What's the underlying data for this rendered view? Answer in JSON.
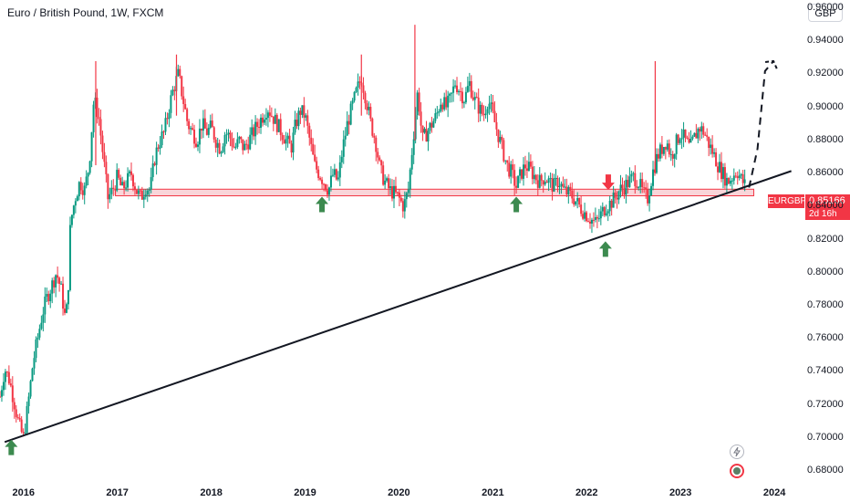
{
  "header": {
    "title": "Euro / British Pound, 1W, FXCM"
  },
  "currency_button": {
    "label": "GBP"
  },
  "price_tag": {
    "symbol": "EURGBP",
    "price": "0.85166",
    "countdown": "2d 16h"
  },
  "colors": {
    "up": "#089981",
    "down": "#f23645",
    "zone_fill": "#f7c7cc",
    "arrow_up": "#3c8a4f",
    "arrow_down": "#f23645"
  },
  "icons": [
    "lightning-icon",
    "record-icon"
  ],
  "chart_data": {
    "type": "candlestick",
    "title": "Euro / British Pound, 1W, FXCM",
    "y_ticks": [
      "0.96000",
      "0.94000",
      "0.92000",
      "0.90000",
      "0.88000",
      "0.86000",
      "0.84000",
      "0.82000",
      "0.80000",
      "0.78000",
      "0.76000",
      "0.74000",
      "0.72000",
      "0.70000",
      "0.68000"
    ],
    "x_ticks": [
      "2016",
      "2017",
      "2018",
      "2019",
      "2020",
      "2021",
      "2022",
      "2023",
      "2024"
    ],
    "ylim": [
      0.675,
      0.965
    ],
    "xlim": [
      2015.75,
      2024.3
    ],
    "close_path": [
      [
        2015.75,
        0.725
      ],
      [
        2015.8,
        0.742
      ],
      [
        2015.85,
        0.735
      ],
      [
        2015.9,
        0.722
      ],
      [
        2015.95,
        0.708
      ],
      [
        2016.0,
        0.7
      ],
      [
        2016.03,
        0.712
      ],
      [
        2016.07,
        0.73
      ],
      [
        2016.1,
        0.745
      ],
      [
        2016.15,
        0.76
      ],
      [
        2016.2,
        0.775
      ],
      [
        2016.25,
        0.785
      ],
      [
        2016.3,
        0.792
      ],
      [
        2016.35,
        0.8
      ],
      [
        2016.4,
        0.79
      ],
      [
        2016.45,
        0.77
      ],
      [
        2016.48,
        0.795
      ],
      [
        2016.5,
        0.83
      ],
      [
        2016.55,
        0.845
      ],
      [
        2016.6,
        0.855
      ],
      [
        2016.65,
        0.85
      ],
      [
        2016.7,
        0.865
      ],
      [
        2016.75,
        0.905
      ],
      [
        2016.8,
        0.895
      ],
      [
        2016.85,
        0.87
      ],
      [
        2016.9,
        0.845
      ],
      [
        2016.95,
        0.85
      ],
      [
        2017.0,
        0.858
      ],
      [
        2017.05,
        0.85
      ],
      [
        2017.1,
        0.855
      ],
      [
        2017.15,
        0.86
      ],
      [
        2017.2,
        0.85
      ],
      [
        2017.25,
        0.845
      ],
      [
        2017.3,
        0.852
      ],
      [
        2017.35,
        0.85
      ],
      [
        2017.4,
        0.87
      ],
      [
        2017.45,
        0.88
      ],
      [
        2017.5,
        0.885
      ],
      [
        2017.55,
        0.9
      ],
      [
        2017.6,
        0.912
      ],
      [
        2017.65,
        0.92
      ],
      [
        2017.7,
        0.905
      ],
      [
        2017.75,
        0.89
      ],
      [
        2017.8,
        0.885
      ],
      [
        2017.85,
        0.88
      ],
      [
        2017.9,
        0.89
      ],
      [
        2017.95,
        0.885
      ],
      [
        2018.0,
        0.888
      ],
      [
        2018.05,
        0.88
      ],
      [
        2018.1,
        0.875
      ],
      [
        2018.15,
        0.885
      ],
      [
        2018.2,
        0.882
      ],
      [
        2018.25,
        0.875
      ],
      [
        2018.3,
        0.88
      ],
      [
        2018.35,
        0.875
      ],
      [
        2018.4,
        0.88
      ],
      [
        2018.45,
        0.885
      ],
      [
        2018.5,
        0.89
      ],
      [
        2018.55,
        0.895
      ],
      [
        2018.6,
        0.9
      ],
      [
        2018.65,
        0.895
      ],
      [
        2018.7,
        0.89
      ],
      [
        2018.75,
        0.885
      ],
      [
        2018.8,
        0.88
      ],
      [
        2018.85,
        0.875
      ],
      [
        2018.9,
        0.89
      ],
      [
        2018.95,
        0.898
      ],
      [
        2019.0,
        0.895
      ],
      [
        2019.05,
        0.88
      ],
      [
        2019.1,
        0.865
      ],
      [
        2019.15,
        0.86
      ],
      [
        2019.2,
        0.855
      ],
      [
        2019.25,
        0.85
      ],
      [
        2019.3,
        0.86
      ],
      [
        2019.35,
        0.855
      ],
      [
        2019.4,
        0.875
      ],
      [
        2019.45,
        0.89
      ],
      [
        2019.5,
        0.9
      ],
      [
        2019.55,
        0.91
      ],
      [
        2019.6,
        0.918
      ],
      [
        2019.65,
        0.905
      ],
      [
        2019.7,
        0.89
      ],
      [
        2019.75,
        0.88
      ],
      [
        2019.8,
        0.862
      ],
      [
        2019.85,
        0.855
      ],
      [
        2019.9,
        0.85
      ],
      [
        2019.95,
        0.848
      ],
      [
        2020.0,
        0.845
      ],
      [
        2020.05,
        0.84
      ],
      [
        2020.1,
        0.85
      ],
      [
        2020.15,
        0.88
      ],
      [
        2020.2,
        0.91
      ],
      [
        2020.25,
        0.88
      ],
      [
        2020.3,
        0.885
      ],
      [
        2020.35,
        0.89
      ],
      [
        2020.4,
        0.895
      ],
      [
        2020.45,
        0.905
      ],
      [
        2020.5,
        0.9
      ],
      [
        2020.55,
        0.905
      ],
      [
        2020.6,
        0.915
      ],
      [
        2020.65,
        0.91
      ],
      [
        2020.7,
        0.905
      ],
      [
        2020.75,
        0.915
      ],
      [
        2020.8,
        0.905
      ],
      [
        2020.85,
        0.9
      ],
      [
        2020.9,
        0.895
      ],
      [
        2020.95,
        0.905
      ],
      [
        2021.0,
        0.895
      ],
      [
        2021.05,
        0.885
      ],
      [
        2021.1,
        0.875
      ],
      [
        2021.15,
        0.865
      ],
      [
        2021.2,
        0.86
      ],
      [
        2021.25,
        0.852
      ],
      [
        2021.3,
        0.86
      ],
      [
        2021.35,
        0.865
      ],
      [
        2021.4,
        0.862
      ],
      [
        2021.45,
        0.858
      ],
      [
        2021.5,
        0.855
      ],
      [
        2021.55,
        0.858
      ],
      [
        2021.6,
        0.855
      ],
      [
        2021.65,
        0.852
      ],
      [
        2021.7,
        0.856
      ],
      [
        2021.75,
        0.85
      ],
      [
        2021.8,
        0.848
      ],
      [
        2021.85,
        0.846
      ],
      [
        2021.9,
        0.842
      ],
      [
        2021.95,
        0.838
      ],
      [
        2022.0,
        0.835
      ],
      [
        2022.05,
        0.832
      ],
      [
        2022.1,
        0.83
      ],
      [
        2022.15,
        0.835
      ],
      [
        2022.2,
        0.84
      ],
      [
        2022.25,
        0.842
      ],
      [
        2022.3,
        0.845
      ],
      [
        2022.35,
        0.85
      ],
      [
        2022.4,
        0.852
      ],
      [
        2022.45,
        0.855
      ],
      [
        2022.5,
        0.858
      ],
      [
        2022.55,
        0.855
      ],
      [
        2022.6,
        0.848
      ],
      [
        2022.65,
        0.845
      ],
      [
        2022.7,
        0.86
      ],
      [
        2022.75,
        0.87
      ],
      [
        2022.8,
        0.875
      ],
      [
        2022.85,
        0.88
      ],
      [
        2022.9,
        0.87
      ],
      [
        2022.95,
        0.878
      ],
      [
        2023.0,
        0.885
      ],
      [
        2023.05,
        0.88
      ],
      [
        2023.1,
        0.875
      ],
      [
        2023.15,
        0.882
      ],
      [
        2023.2,
        0.888
      ],
      [
        2023.25,
        0.885
      ],
      [
        2023.3,
        0.878
      ],
      [
        2023.35,
        0.872
      ],
      [
        2023.4,
        0.865
      ],
      [
        2023.45,
        0.86
      ],
      [
        2023.5,
        0.855
      ],
      [
        2023.55,
        0.858
      ],
      [
        2023.6,
        0.862
      ],
      [
        2023.65,
        0.856
      ],
      [
        2023.7,
        0.852
      ]
    ],
    "spikes": [
      {
        "x": 2016.77,
        "high": 0.928,
        "low": 0.865
      },
      {
        "x": 2017.63,
        "high": 0.932,
        "low": 0.895
      },
      {
        "x": 2019.6,
        "high": 0.932,
        "low": 0.895
      },
      {
        "x": 2020.17,
        "high": 0.95,
        "low": 0.88
      },
      {
        "x": 2022.73,
        "high": 0.928,
        "low": 0.86
      }
    ],
    "support_zone": {
      "from": 2016.98,
      "to": 2023.78,
      "low": 0.8465,
      "high": 0.8505
    },
    "trendline": {
      "x1": 2015.8,
      "y1": 0.6975,
      "x2": 2024.18,
      "y2": 0.8615
    },
    "projection": [
      [
        2023.73,
        0.8515
      ],
      [
        2023.82,
        0.875
      ],
      [
        2023.9,
        0.922
      ],
      [
        2023.99,
        0.928
      ]
    ],
    "arrows_up": [
      {
        "x": 2015.87,
        "y": 0.694
      },
      {
        "x": 2019.18,
        "y": 0.841
      },
      {
        "x": 2021.25,
        "y": 0.841
      },
      {
        "x": 2022.2,
        "y": 0.814
      }
    ],
    "arrows_down": [
      {
        "x": 2022.23,
        "y": 0.855
      }
    ],
    "last_price": 0.85166
  }
}
